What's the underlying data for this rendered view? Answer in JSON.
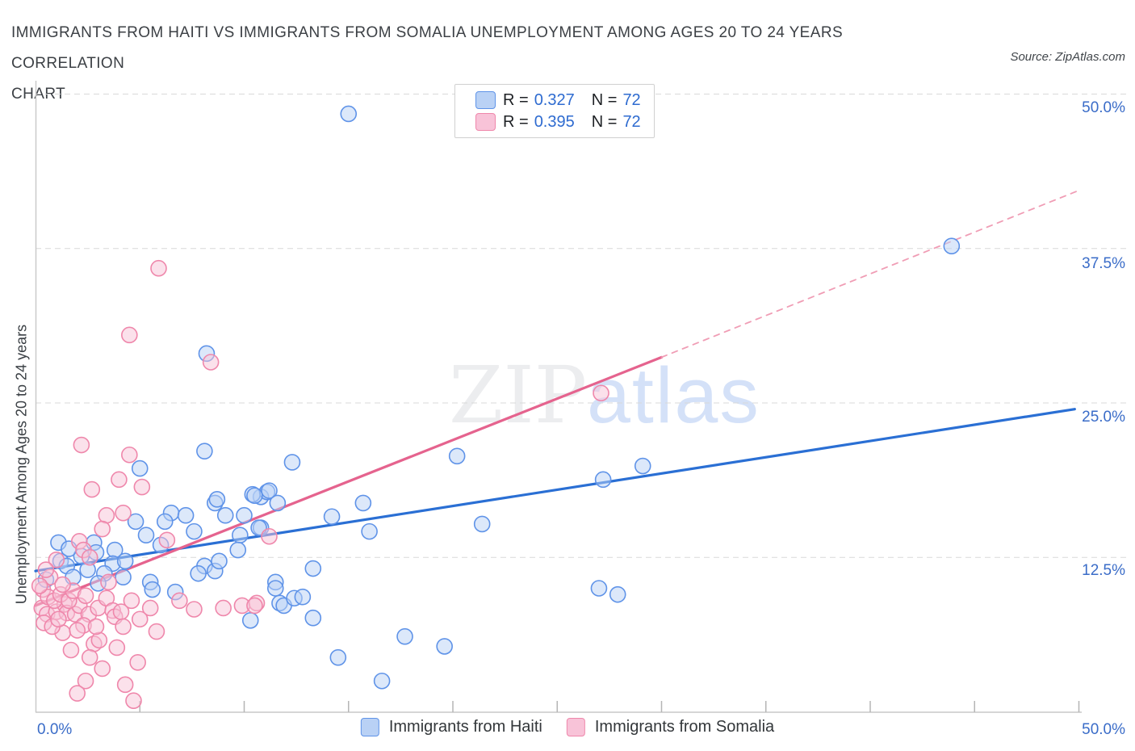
{
  "header": {
    "title_line1": "IMMIGRANTS FROM HAITI VS IMMIGRANTS FROM SOMALIA UNEMPLOYMENT AMONG AGES 20 TO 24 YEARS CORRELATION",
    "title_line2": "CHART",
    "source": "Source: ZipAtlas.com"
  },
  "legend_box": {
    "rows": [
      {
        "r_label": "R =",
        "r_value": "0.327",
        "n_label": "N =",
        "n_value": "72"
      },
      {
        "r_label": "R =",
        "r_value": "0.395",
        "n_label": "N =",
        "n_value": "72"
      }
    ]
  },
  "y_axis": {
    "label": "Unemployment Among Ages 20 to 24 years",
    "tick_labels": [
      "50.0%",
      "37.5%",
      "25.0%",
      "12.5%"
    ]
  },
  "x_axis": {
    "left_label": "0.0%",
    "right_label": "50.0%"
  },
  "watermark": {
    "part1": "ZIP",
    "part2": "atlas"
  },
  "bottom_legend": {
    "items": [
      {
        "label": "Immigrants from Haiti"
      },
      {
        "label": "Immigrants from Somalia"
      }
    ]
  },
  "colors": {
    "haiti_stroke": "#5f93e8",
    "haiti_fill": "#b9d1f5",
    "somalia_stroke": "#ef87ab",
    "somalia_fill": "#f8c3d8",
    "haiti_trend": "#2a6fd4",
    "somalia_trend": "#e5638e",
    "axis": "#c9c9c9",
    "gridline": "#d9d9d9",
    "tick_label_blue": "#3a6cc8"
  },
  "chart_data": {
    "type": "scatter",
    "title": "Immigrants from Haiti vs Immigrants from Somalia Unemployment Among Ages 20 to 24 years Correlation Chart",
    "ylabel": "Unemployment Among Ages 20 to 24 years",
    "x_range": [
      0,
      50
    ],
    "y_range": [
      0,
      50
    ],
    "grid": "horizontal-dashed",
    "y_gridlines_pct": [
      12.5,
      25,
      37.5,
      50
    ],
    "x_ticks_pct": [
      5,
      10,
      15,
      20,
      25,
      30,
      35,
      40,
      45,
      50
    ],
    "series": [
      {
        "name": "Immigrants from Haiti",
        "R": 0.327,
        "N": 72,
        "points": [
          [
            1.1,
            13.7
          ],
          [
            0.5,
            10.7
          ],
          [
            1.2,
            12.2
          ],
          [
            1.5,
            11.8
          ],
          [
            1.8,
            10.9
          ],
          [
            2.8,
            13.7
          ],
          [
            2.9,
            12.9
          ],
          [
            3.8,
            13.1
          ],
          [
            3.7,
            12.0
          ],
          [
            4.3,
            12.2
          ],
          [
            3.3,
            11.2
          ],
          [
            4.2,
            10.9
          ],
          [
            4.8,
            15.4
          ],
          [
            5.3,
            14.3
          ],
          [
            6.5,
            16.1
          ],
          [
            7.2,
            15.9
          ],
          [
            6.2,
            15.4
          ],
          [
            7.6,
            14.6
          ],
          [
            8.6,
            16.9
          ],
          [
            9.1,
            15.9
          ],
          [
            10.0,
            15.9
          ],
          [
            10.8,
            17.4
          ],
          [
            11.1,
            17.8
          ],
          [
            10.8,
            14.9
          ],
          [
            9.8,
            14.3
          ],
          [
            9.7,
            13.1
          ],
          [
            8.1,
            11.8
          ],
          [
            7.8,
            11.2
          ],
          [
            8.6,
            11.4
          ],
          [
            8.8,
            12.2
          ],
          [
            5.5,
            10.5
          ],
          [
            5.6,
            9.9
          ],
          [
            6.7,
            9.7
          ],
          [
            11.5,
            10.5
          ],
          [
            11.7,
            8.8
          ],
          [
            10.3,
            7.4
          ],
          [
            5.0,
            19.7
          ],
          [
            8.1,
            21.1
          ],
          [
            8.2,
            29.0
          ],
          [
            12.3,
            20.2
          ],
          [
            11.2,
            17.9
          ],
          [
            10.4,
            17.6
          ],
          [
            8.7,
            17.2
          ],
          [
            15.0,
            48.4
          ],
          [
            20.2,
            20.7
          ],
          [
            10.5,
            17.5
          ],
          [
            11.6,
            16.9
          ],
          [
            10.7,
            14.9
          ],
          [
            14.2,
            15.8
          ],
          [
            15.7,
            16.9
          ],
          [
            16.0,
            14.6
          ],
          [
            21.4,
            15.2
          ],
          [
            13.3,
            11.6
          ],
          [
            11.5,
            10.0
          ],
          [
            11.9,
            8.6
          ],
          [
            12.4,
            9.2
          ],
          [
            12.8,
            9.3
          ],
          [
            13.3,
            7.6
          ],
          [
            17.7,
            6.1
          ],
          [
            19.6,
            5.3
          ],
          [
            14.5,
            4.4
          ],
          [
            16.6,
            2.5
          ],
          [
            27.2,
            18.8
          ],
          [
            29.1,
            19.9
          ],
          [
            27.0,
            10.0
          ],
          [
            27.9,
            9.5
          ],
          [
            43.9,
            37.7
          ],
          [
            2.2,
            12.6
          ],
          [
            1.6,
            13.2
          ],
          [
            2.5,
            11.5
          ],
          [
            3.0,
            10.4
          ],
          [
            6.0,
            13.5
          ]
        ]
      },
      {
        "name": "Immigrants from Somalia",
        "R": 0.395,
        "N": 72,
        "points": [
          [
            2.7,
            18.0
          ],
          [
            5.1,
            18.2
          ],
          [
            3.4,
            15.9
          ],
          [
            4.2,
            16.1
          ],
          [
            3.2,
            14.8
          ],
          [
            2.1,
            13.8
          ],
          [
            2.3,
            13.1
          ],
          [
            2.6,
            12.5
          ],
          [
            1.0,
            12.3
          ],
          [
            0.7,
            10.9
          ],
          [
            0.35,
            9.9
          ],
          [
            0.3,
            8.4
          ],
          [
            0.55,
            7.9
          ],
          [
            1.0,
            8.1
          ],
          [
            1.4,
            8.7
          ],
          [
            1.5,
            8.0
          ],
          [
            1.9,
            7.9
          ],
          [
            2.1,
            8.6
          ],
          [
            2.55,
            7.9
          ],
          [
            3.0,
            8.4
          ],
          [
            3.4,
            9.2
          ],
          [
            3.7,
            8.2
          ],
          [
            3.8,
            7.7
          ],
          [
            4.1,
            8.1
          ],
          [
            4.2,
            6.9
          ],
          [
            1.3,
            6.4
          ],
          [
            1.7,
            5.0
          ],
          [
            2.8,
            5.5
          ],
          [
            3.05,
            5.8
          ],
          [
            3.2,
            3.5
          ],
          [
            2.4,
            2.5
          ],
          [
            2.0,
            1.5
          ],
          [
            4.3,
            2.2
          ],
          [
            4.7,
            0.9
          ],
          [
            5.5,
            8.4
          ],
          [
            6.3,
            13.9
          ],
          [
            9.0,
            8.4
          ],
          [
            9.9,
            8.6
          ],
          [
            10.6,
            8.8
          ],
          [
            11.2,
            14.2
          ],
          [
            10.5,
            8.6
          ],
          [
            2.2,
            21.6
          ],
          [
            4.5,
            20.8
          ],
          [
            4.0,
            18.8
          ],
          [
            4.5,
            30.5
          ],
          [
            5.9,
            35.9
          ],
          [
            8.4,
            28.3
          ],
          [
            27.1,
            25.8
          ],
          [
            0.6,
            9.3
          ],
          [
            0.9,
            9.0
          ],
          [
            1.2,
            9.5
          ],
          [
            1.6,
            9.0
          ],
          [
            0.4,
            7.2
          ],
          [
            0.8,
            6.9
          ],
          [
            1.1,
            7.5
          ],
          [
            2.3,
            7.0
          ],
          [
            2.0,
            6.6
          ],
          [
            2.9,
            6.9
          ],
          [
            1.8,
            9.8
          ],
          [
            2.4,
            9.4
          ],
          [
            0.5,
            11.5
          ],
          [
            1.3,
            10.3
          ],
          [
            3.5,
            10.5
          ],
          [
            0.2,
            10.2
          ],
          [
            4.6,
            9.0
          ],
          [
            5.0,
            7.5
          ],
          [
            3.9,
            5.2
          ],
          [
            4.9,
            4.0
          ],
          [
            2.6,
            4.4
          ],
          [
            5.8,
            6.5
          ],
          [
            6.9,
            9.0
          ],
          [
            7.6,
            8.3
          ]
        ]
      }
    ],
    "trend_lines": [
      {
        "series": "Immigrants from Haiti",
        "style": "solid",
        "x1": 0,
        "y1": 11.4,
        "x2": 49.8,
        "y2": 24.5
      },
      {
        "series": "Immigrants from Somalia",
        "style": "solid",
        "x1": 0,
        "y1": 8.6,
        "x2": 30.0,
        "y2": 28.7
      },
      {
        "series": "Immigrants from Somalia",
        "style": "dashed",
        "x1": 30.0,
        "y1": 28.7,
        "x2": 50.0,
        "y2": 42.2
      }
    ],
    "legend_position": "bottom-center"
  }
}
